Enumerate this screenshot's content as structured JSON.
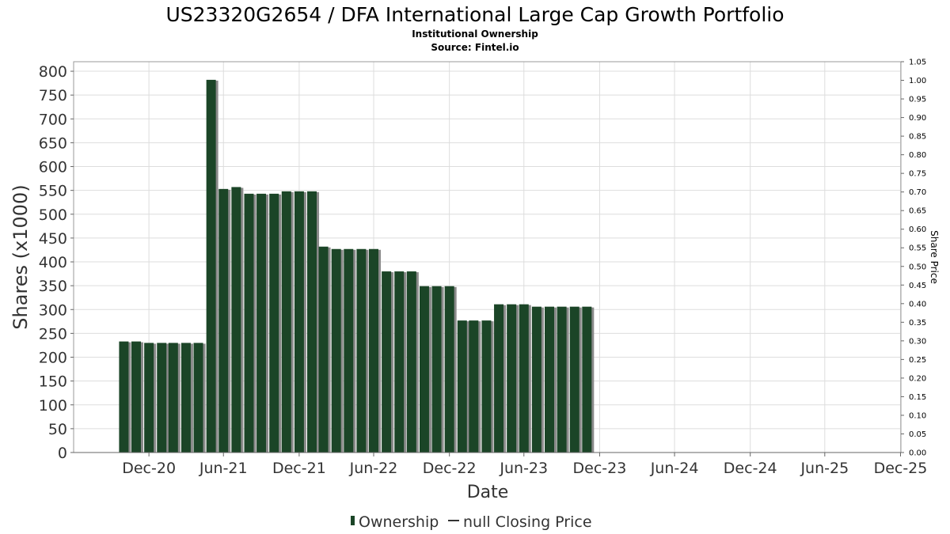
{
  "title": "US23320G2654 / DFA International Large Cap Growth Portfolio",
  "subtitle1": "Institutional Ownership",
  "subtitle2": "Source: Fintel.io",
  "legend": {
    "ownership": "Ownership",
    "price": "null Closing Price"
  },
  "colors": {
    "bar": "#1b4527",
    "bar_shadow": "#8a8a8a",
    "grid": "#dddddd",
    "axis_text": "#333333"
  },
  "chart_data": {
    "type": "bar",
    "xlabel": "Date",
    "ylabel": "Shares (x1000)",
    "y2label": "Share Price",
    "ylim": [
      0,
      820
    ],
    "y2lim": [
      0,
      1.05
    ],
    "xlim": [
      "2020-07-01",
      "2026-01-01"
    ],
    "grid": true,
    "legend_position": "bottom",
    "y_ticks": [
      0,
      50,
      100,
      150,
      200,
      250,
      300,
      350,
      400,
      450,
      500,
      550,
      600,
      650,
      700,
      750,
      800
    ],
    "y2_ticks": [
      "0.00",
      "0.05",
      "0.10",
      "0.15",
      "0.20",
      "0.25",
      "0.30",
      "0.35",
      "0.40",
      "0.45",
      "0.50",
      "0.55",
      "0.60",
      "0.65",
      "0.70",
      "0.75",
      "0.80",
      "0.85",
      "0.90",
      "0.95",
      "1.00",
      "1.05"
    ],
    "x_ticks": [
      {
        "label": "Dec-20",
        "date": "2020-12-31"
      },
      {
        "label": "Jun-21",
        "date": "2021-06-30"
      },
      {
        "label": "Dec-21",
        "date": "2021-12-31"
      },
      {
        "label": "Jun-22",
        "date": "2022-06-30"
      },
      {
        "label": "Dec-22",
        "date": "2022-12-31"
      },
      {
        "label": "Jun-23",
        "date": "2023-06-30"
      },
      {
        "label": "Dec-23",
        "date": "2023-12-31"
      },
      {
        "label": "Jun-24",
        "date": "2024-06-30"
      },
      {
        "label": "Dec-24",
        "date": "2024-12-31"
      },
      {
        "label": "Jun-25",
        "date": "2025-06-30"
      },
      {
        "label": "Dec-25",
        "date": "2025-12-31"
      }
    ],
    "series": [
      {
        "name": "Ownership",
        "points": [
          {
            "x": "2020-10-31",
            "y": 233
          },
          {
            "x": "2020-11-30",
            "y": 233
          },
          {
            "x": "2020-12-31",
            "y": 230
          },
          {
            "x": "2021-01-31",
            "y": 230
          },
          {
            "x": "2021-02-28",
            "y": 230
          },
          {
            "x": "2021-03-31",
            "y": 230
          },
          {
            "x": "2021-04-30",
            "y": 230
          },
          {
            "x": "2021-05-31",
            "y": 782
          },
          {
            "x": "2021-06-30",
            "y": 553
          },
          {
            "x": "2021-07-31",
            "y": 557
          },
          {
            "x": "2021-08-31",
            "y": 543
          },
          {
            "x": "2021-09-30",
            "y": 543
          },
          {
            "x": "2021-10-31",
            "y": 543
          },
          {
            "x": "2021-11-30",
            "y": 548
          },
          {
            "x": "2021-12-31",
            "y": 548
          },
          {
            "x": "2022-01-31",
            "y": 548
          },
          {
            "x": "2022-02-28",
            "y": 432
          },
          {
            "x": "2022-03-31",
            "y": 427
          },
          {
            "x": "2022-04-30",
            "y": 427
          },
          {
            "x": "2022-05-31",
            "y": 427
          },
          {
            "x": "2022-06-30",
            "y": 427
          },
          {
            "x": "2022-07-31",
            "y": 380
          },
          {
            "x": "2022-08-31",
            "y": 380
          },
          {
            "x": "2022-09-30",
            "y": 380
          },
          {
            "x": "2022-10-31",
            "y": 349
          },
          {
            "x": "2022-11-30",
            "y": 349
          },
          {
            "x": "2022-12-31",
            "y": 349
          },
          {
            "x": "2023-01-31",
            "y": 277
          },
          {
            "x": "2023-02-28",
            "y": 277
          },
          {
            "x": "2023-03-31",
            "y": 277
          },
          {
            "x": "2023-04-30",
            "y": 311
          },
          {
            "x": "2023-05-31",
            "y": 311
          },
          {
            "x": "2023-06-30",
            "y": 311
          },
          {
            "x": "2023-07-31",
            "y": 306
          },
          {
            "x": "2023-08-31",
            "y": 306
          },
          {
            "x": "2023-09-30",
            "y": 306
          },
          {
            "x": "2023-10-31",
            "y": 306
          },
          {
            "x": "2023-11-30",
            "y": 306
          }
        ]
      }
    ]
  }
}
